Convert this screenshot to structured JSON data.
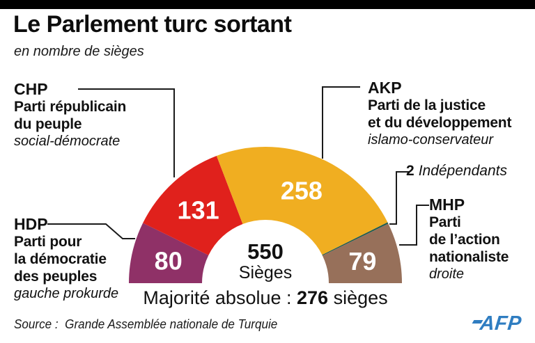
{
  "header": {
    "title": "Le Parlement turc sortant",
    "subtitle": "en nombre de sièges"
  },
  "parties": [
    {
      "acronym": "HDP",
      "lines": [
        "Parti pour",
        "la démocratie",
        "des peuples"
      ],
      "descriptor": "gauche prokurde",
      "seats": "80",
      "color": "#8F3167"
    },
    {
      "acronym": "CHP",
      "lines": [
        "Parti républicain",
        "du peuple"
      ],
      "descriptor": "social-démocrate",
      "seats": "131",
      "color": "#E0211C"
    },
    {
      "acronym": "AKP",
      "lines": [
        "Parti de la justice",
        "et du développement"
      ],
      "descriptor": "islamo-conservateur",
      "seats": "258",
      "color": "#F0AE21"
    },
    {
      "acronym": "2",
      "lines": [],
      "descriptor": "Indépendants",
      "seats": "2",
      "color": "#1D5B50"
    },
    {
      "acronym": "MHP",
      "lines": [
        "Parti",
        "de l’action",
        "nationaliste"
      ],
      "descriptor": "droite",
      "seats": "79",
      "color": "#97705A"
    }
  ],
  "independents": {
    "value": "2",
    "label": "Indépendants"
  },
  "center": {
    "value": "550",
    "unit": "Sièges"
  },
  "majority": {
    "prefix": "Majorité absolue : ",
    "value": "276",
    "suffix": " sièges"
  },
  "chart_data": {
    "type": "pie",
    "variant": "half-donut",
    "title": "Le Parlement turc sortant",
    "subtitle": "en nombre de sièges",
    "categories": [
      "HDP",
      "CHP",
      "AKP",
      "Indépendants",
      "MHP"
    ],
    "values": [
      80,
      131,
      258,
      2,
      79
    ],
    "colors": [
      "#8F3167",
      "#E0211C",
      "#F0AE21",
      "#1D5B50",
      "#97705A"
    ],
    "show_value_labels": [
      true,
      true,
      true,
      false,
      true
    ],
    "value_label_color": "#FFFFFF",
    "total": 550,
    "center_label": {
      "value": "550",
      "unit": "Sièges"
    },
    "majority_note": "Majorité absolue : 276 sièges",
    "legend_position": "callout-labels",
    "angle_span_deg": 180
  },
  "footer": {
    "source": "Source :  Grande Assemblée nationale de Turquie",
    "logo_text": "AFP",
    "logo_color": "#2F7DC1"
  }
}
